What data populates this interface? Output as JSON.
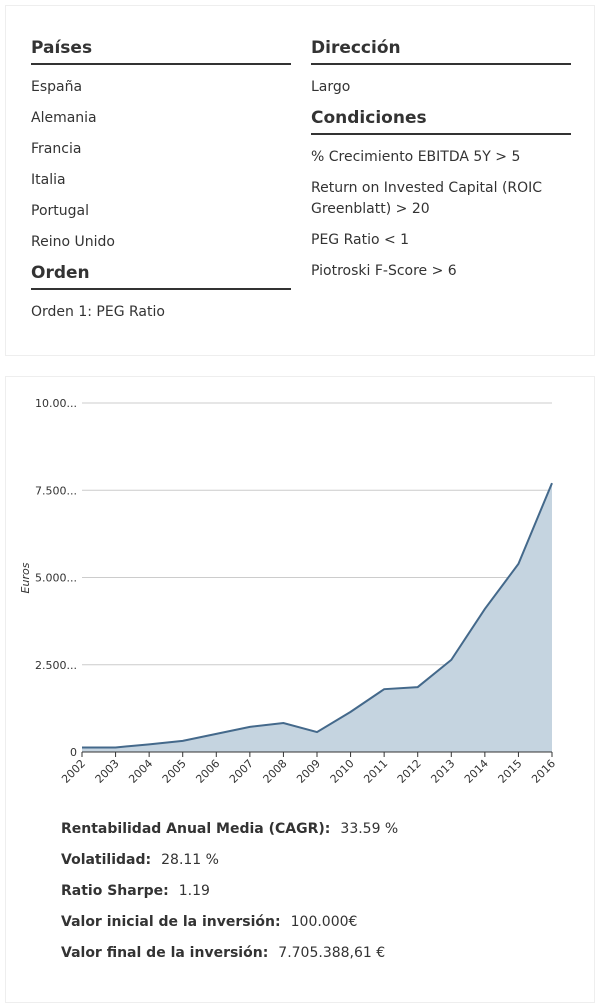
{
  "filters": {
    "left": [
      {
        "title": "Países",
        "items": [
          "España",
          "Alemania",
          "Francia",
          "Italia",
          "Portugal",
          "Reino Unido"
        ]
      },
      {
        "title": "Orden",
        "items": [
          "Orden 1: PEG Ratio"
        ]
      }
    ],
    "right": [
      {
        "title": "Dirección",
        "items": [
          "Largo"
        ]
      },
      {
        "title": "Condiciones",
        "items": [
          "% Crecimiento EBITDA 5Y > 5",
          "Return on Invested Capital (ROIC Greenblatt) > 20",
          "PEG Ratio < 1",
          "Piotroski F-Score > 6"
        ]
      }
    ]
  },
  "chart_data": {
    "type": "area",
    "ylabel": "Euros",
    "categories": [
      "2002",
      "2003",
      "2004",
      "2005",
      "2006",
      "2007",
      "2008",
      "2009",
      "2010",
      "2011",
      "2012",
      "2013",
      "2014",
      "2015",
      "2016"
    ],
    "values": [
      130000,
      130000,
      220000,
      320000,
      520000,
      720000,
      830000,
      570000,
      1150000,
      1800000,
      1860000,
      2640000,
      4100000,
      5390000,
      7705388
    ],
    "color": "#44698b",
    "fill": "#c5d4e0",
    "ylim": [
      0,
      10000000
    ],
    "yticks": [
      0,
      {
        "value": 2500000,
        "label": "2.500..."
      },
      {
        "value": 5000000,
        "label": "5.000..."
      },
      {
        "value": 7500000,
        "label": "7.500..."
      },
      {
        "value": 10000000,
        "label": "10.00..."
      }
    ],
    "grid": true
  },
  "stats": [
    {
      "label": "Rentabilidad Anual Media (CAGR):",
      "value": "33.59 %"
    },
    {
      "label": "Volatilidad:",
      "value": "28.11 %"
    },
    {
      "label": "Ratio Sharpe:",
      "value": "1.19"
    },
    {
      "label": "Valor inicial de la inversión:",
      "value": "100.000€"
    },
    {
      "label": "Valor final de la inversión:",
      "value": "7.705.388,61 €"
    }
  ]
}
